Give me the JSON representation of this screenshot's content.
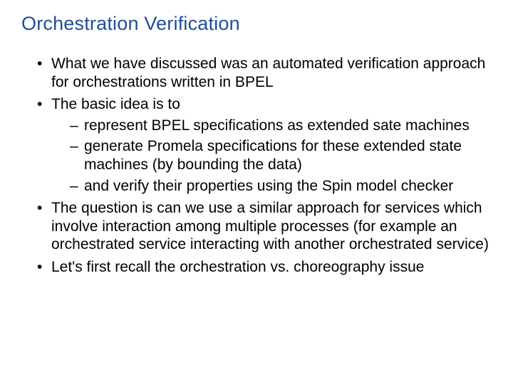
{
  "colors": {
    "title": "#1f4e9c",
    "body": "#000000",
    "background": "#ffffff"
  },
  "typography": {
    "title_fontsize_pt": 20,
    "body_fontsize_pt": 16,
    "font_family": "Arial"
  },
  "title": "Orchestration Verification",
  "bullets": [
    {
      "text": "What we have discussed was an automated verification approach for orchestrations written in BPEL",
      "sub": []
    },
    {
      "text": "The basic idea is to",
      "sub": [
        "represent BPEL specifications as extended sate machines",
        "generate Promela specifications for these extended state machines (by bounding the data)",
        "and verify their properties using the Spin model checker"
      ]
    },
    {
      "text": "The question is can we use a similar approach for services which involve interaction among multiple processes (for example an orchestrated service interacting with another orchestrated service)",
      "sub": []
    },
    {
      "text": "Let's first recall the orchestration vs. choreography issue",
      "sub": []
    }
  ]
}
